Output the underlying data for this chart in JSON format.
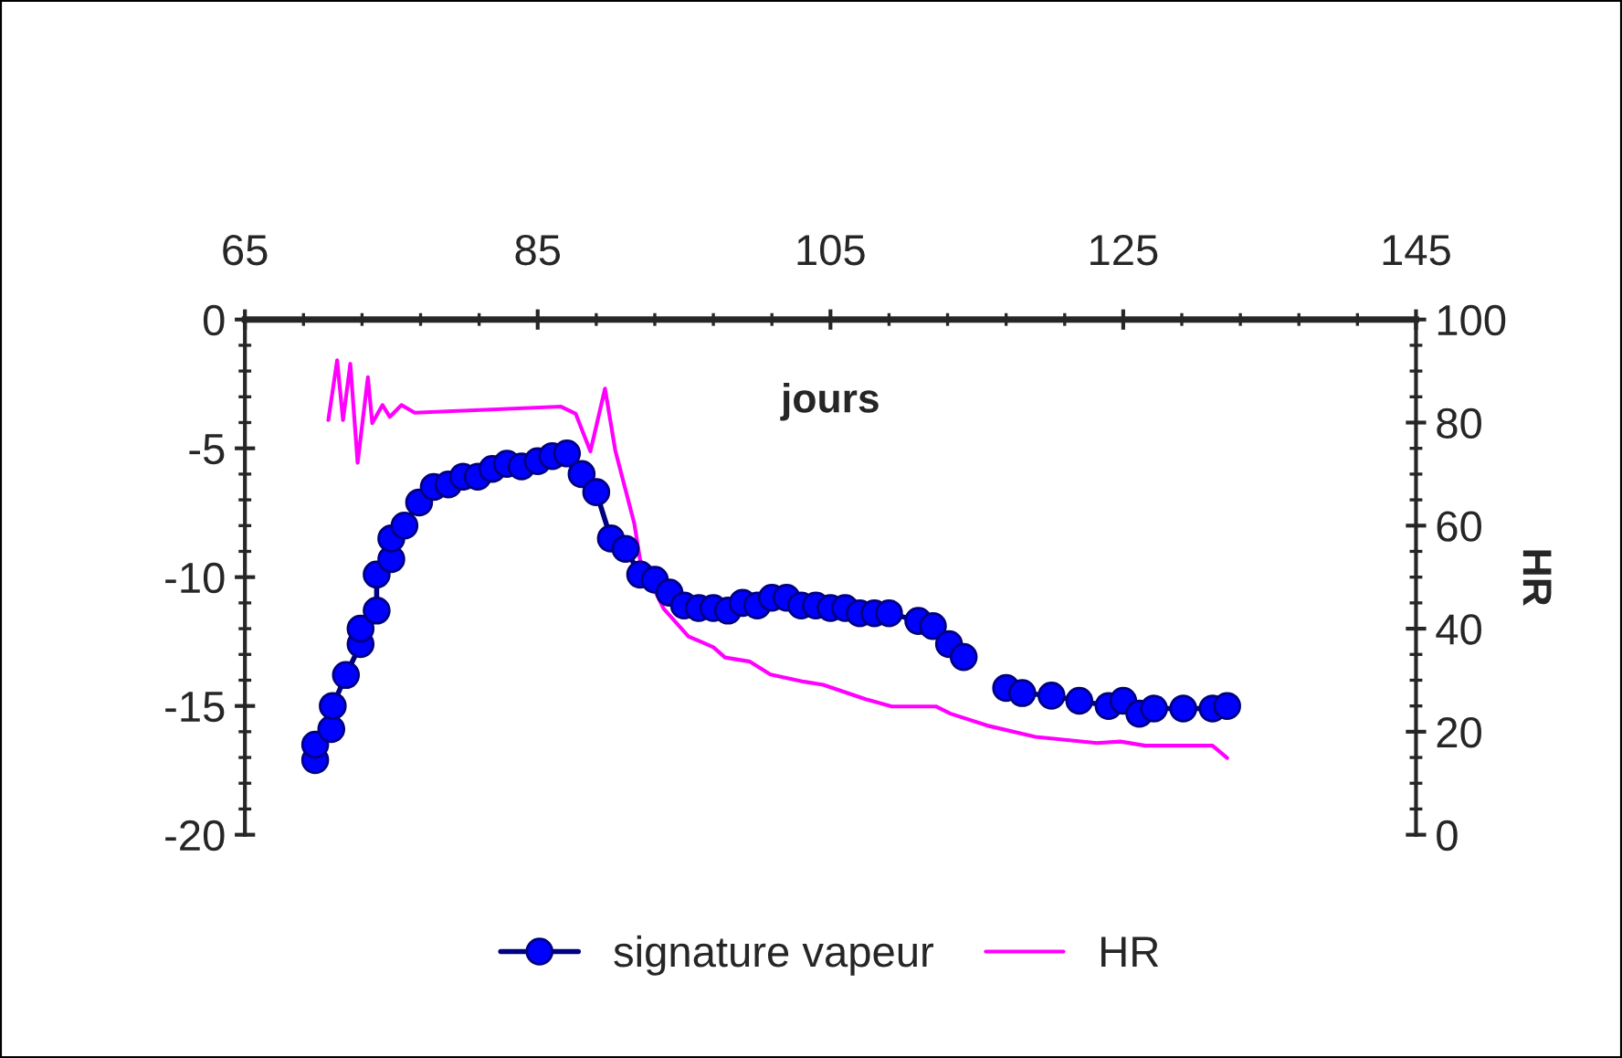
{
  "chart_data": {
    "type": "line",
    "xlabel": "jours",
    "y2label": "HR",
    "xlim": [
      65,
      145
    ],
    "xticks": [
      65,
      85,
      105,
      125,
      145
    ],
    "ylim": [
      -20,
      0
    ],
    "yticks": [
      -20,
      -15,
      -10,
      -5,
      0
    ],
    "y2lim": [
      0,
      100
    ],
    "y2ticks": [
      0,
      20,
      40,
      60,
      80,
      100
    ],
    "grid": false,
    "legend": "bottom",
    "series": [
      {
        "name": "signature vapeur",
        "color": "#0000ff",
        "marker": "circle",
        "line_style": "solid",
        "x": [
          69.8,
          69.8,
          70.9,
          71.0,
          71.9,
          72.9,
          72.9,
          74.0,
          74.0,
          75.0,
          75.0,
          75.9,
          76.9,
          77.9,
          78.9,
          79.9,
          80.9,
          81.9,
          82.9,
          83.9,
          85.0,
          86.0,
          87.0,
          88.0,
          89.0,
          90.0,
          91.0,
          92.0,
          93.0,
          94.0,
          95.0,
          96.0,
          97.0,
          98.0,
          99.0,
          100.0,
          101.0,
          102.0,
          103.0,
          104.0,
          105.0,
          106.0,
          107.0,
          108.0,
          109.0,
          111.0,
          112.0,
          113.1,
          114.1,
          115.5,
          117.0,
          118.1,
          120.1,
          122.0,
          124.0,
          125.0,
          126.1,
          127.1,
          129.1,
          131.1,
          132.1
        ],
        "values": [
          -17.1,
          -16.5,
          -15.9,
          -15.0,
          -13.8,
          -12.6,
          -12.0,
          -11.3,
          -9.9,
          -9.3,
          -8.5,
          -8.0,
          -7.1,
          -6.5,
          -6.4,
          -6.1,
          -6.1,
          -5.8,
          -5.6,
          -5.7,
          -5.5,
          -5.3,
          -5.2,
          -6.0,
          -6.7,
          -8.5,
          -8.9,
          -9.9,
          -10.1,
          -10.6,
          -11.1,
          -11.2,
          -11.2,
          -11.3,
          -11.0,
          -11.1,
          -10.8,
          -10.8,
          -11.1,
          -11.1,
          -11.2,
          -11.2,
          -11.4,
          -11.4,
          -11.4,
          -11.7,
          -11.9,
          -12.6,
          -13.1,
          null,
          -14.3,
          -14.5,
          -14.6,
          -14.8,
          -15.0,
          -14.8,
          -15.3,
          -15.1,
          -15.1,
          -15.1,
          -15.0
        ]
      },
      {
        "name": "HR",
        "color": "#ff00ff",
        "marker": "none",
        "line_style": "solid",
        "axis": "y2",
        "x": [
          70.7,
          71.3,
          71.7,
          72.2,
          72.7,
          73.4,
          73.7,
          74.4,
          74.9,
          75.7,
          76.6,
          79.9,
          86.6,
          87.6,
          88.6,
          89.6,
          90.3,
          91.6,
          92.0,
          93.6,
          95.3,
          97.0,
          97.8,
          99.5,
          100.9,
          103.2,
          104.5,
          107.4,
          109.2,
          112.2,
          113.2,
          115.7,
          119.0,
          123.2,
          124.8,
          126.5,
          131.1,
          132.1
        ],
        "values": [
          80.5,
          92.1,
          80.5,
          91.4,
          72.2,
          88.8,
          79.9,
          83.4,
          81.1,
          83.4,
          81.9,
          82.3,
          83.1,
          81.7,
          74.4,
          86.6,
          74.6,
          60.4,
          53.3,
          43.9,
          38.5,
          36.4,
          34.4,
          33.6,
          31.1,
          29.7,
          29.1,
          26.3,
          24.9,
          24.9,
          23.5,
          21.2,
          19.0,
          17.8,
          18.1,
          17.3,
          17.3,
          14.9
        ]
      }
    ]
  }
}
